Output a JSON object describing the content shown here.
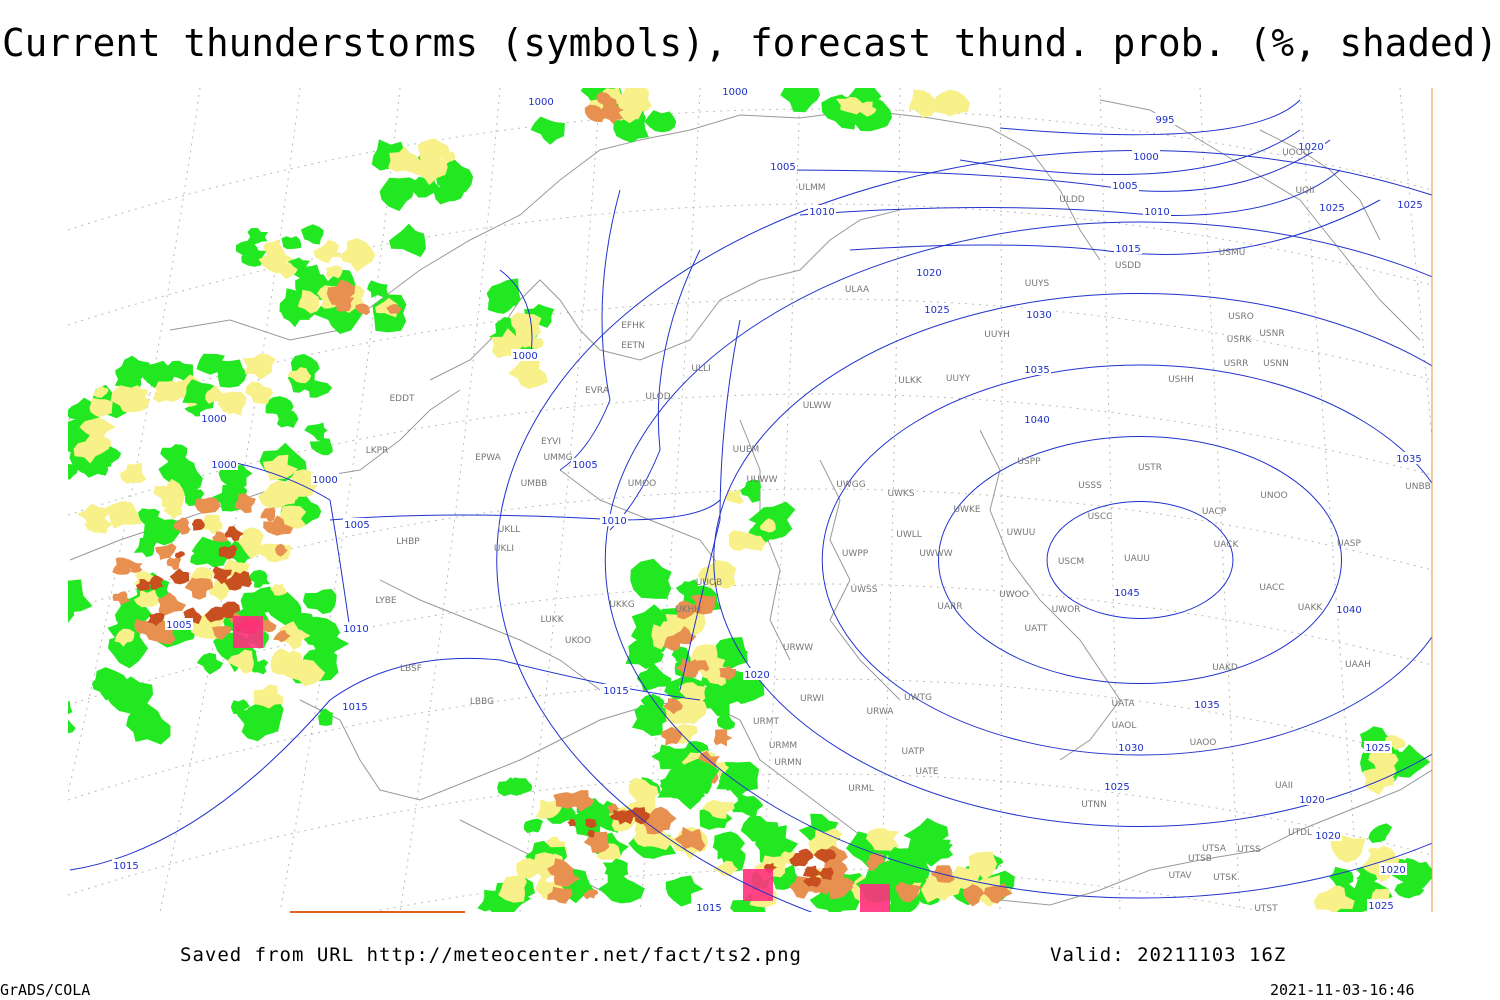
{
  "title": "Current thunderstorms (symbols), forecast thund. prob. (%, shaded)",
  "isobar_labels": [
    1000,
    1000,
    995,
    1000,
    1005,
    1005,
    1010,
    1010,
    1015,
    1020,
    1025,
    1030,
    1035,
    1040,
    1045,
    1040,
    1035,
    1030,
    1025,
    1020,
    1025,
    1025,
    1000,
    1000,
    1000,
    1000,
    1005,
    1005,
    1010,
    1010,
    1005,
    1015,
    1015,
    1015,
    1015,
    1020,
    1020,
    1020,
    1020,
    1025,
    1025,
    1035
  ],
  "station_labels": [
    "ULMM",
    "ULDD",
    "USDD",
    "USMU",
    "UOII",
    "UOOO",
    "ULAA",
    "UUYS",
    "USRO",
    "USRK",
    "USNR",
    "UUYH",
    "USRR",
    "USNN",
    "USHH",
    "ULKK",
    "UUYY",
    "ULWW",
    "UUEM",
    "UUWW",
    "UWGG",
    "UWKS",
    "UWKE",
    "UWUU",
    "USPP",
    "USTR",
    "USSS",
    "USCC",
    "UNOO",
    "UACP",
    "UACK",
    "UASP",
    "UNBB",
    "UWWW",
    "UWLL",
    "UWPP",
    "USCM",
    "UAUU",
    "UWSS",
    "UARR",
    "UWOO",
    "UWOR",
    "UATT",
    "UACC",
    "UAKK",
    "URWW",
    "URWI",
    "UAAH",
    "UAKD",
    "UWTG",
    "URWA",
    "UATA",
    "UAOL",
    "UAOO",
    "UATP",
    "UATE",
    "URML",
    "UTNN",
    "URMN",
    "URMM",
    "URMT",
    "EFHK",
    "EETN",
    "EVRA",
    "ULOD",
    "EYVI",
    "UMMG",
    "EPWA",
    "UMBB",
    "UMOO",
    "ULLI",
    "UUOB",
    "LUKK",
    "UKOO",
    "UKKG",
    "UKHH",
    "LBSF",
    "LBBG",
    "LYBE",
    "LKPR",
    "EDDT",
    "LHBP",
    "UKLL",
    "UKLI",
    "UTSA",
    "UTSB",
    "UTSS",
    "UTAV",
    "UTSK",
    "UTST",
    "UTDL",
    "UAII"
  ],
  "footer": {
    "source": "Saved from URL http://meteocenter.net/fact/ts2.png",
    "valid": "Valid: 20211103 16Z",
    "software": "GrADS/COLA",
    "timestamp": "2021-11-03-16:46"
  }
}
